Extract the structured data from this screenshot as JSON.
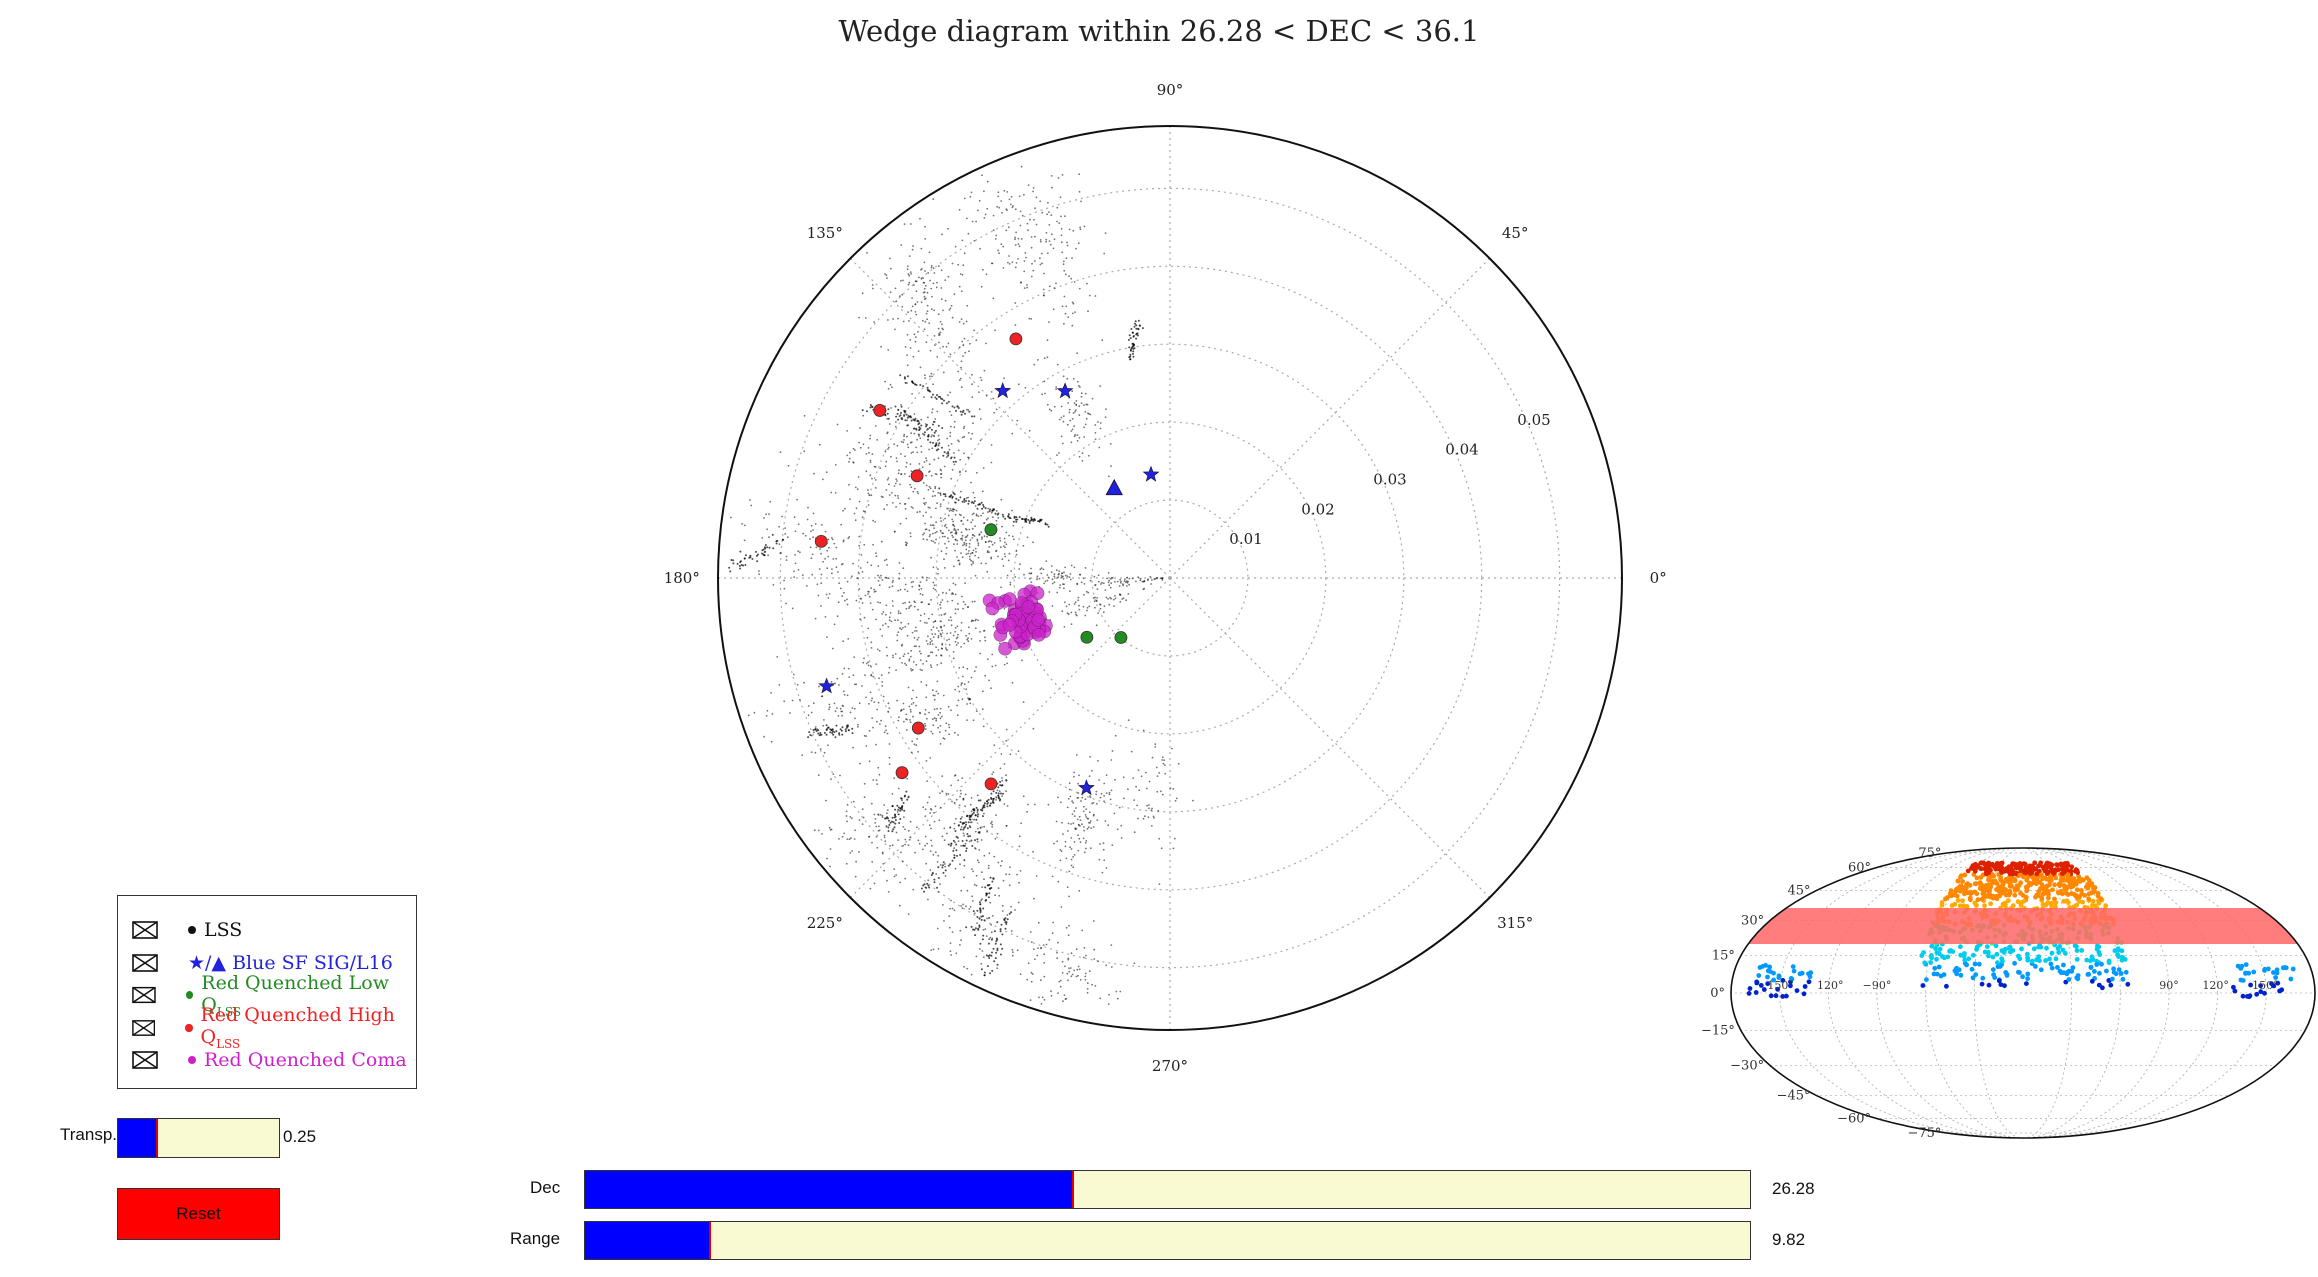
{
  "title": "Wedge diagram within 26.28  <  DEC  <  36.1",
  "chart_data": {
    "type": "scatter",
    "projection": "polar",
    "angle_ticks": [
      "0°",
      "45°",
      "90°",
      "135°",
      "180°",
      "225°",
      "270°",
      "315°"
    ],
    "radial_ticks": [
      "0.01",
      "0.02",
      "0.03",
      "0.04",
      "0.05"
    ],
    "rmax": 0.058,
    "series": [
      {
        "name": "LSS",
        "color": "#000000",
        "marker": "dot",
        "clusters": [
          [
            130,
            0.05,
            0.004,
            120
          ],
          [
            135,
            0.04,
            0.006,
            100
          ],
          [
            150,
            0.035,
            0.004,
            140
          ],
          [
            160,
            0.04,
            0.005,
            110
          ],
          [
            165,
            0.03,
            0.004,
            150
          ],
          [
            170,
            0.025,
            0.003,
            120
          ],
          [
            175,
            0.045,
            0.006,
            130
          ],
          [
            185,
            0.035,
            0.005,
            150
          ],
          [
            195,
            0.03,
            0.004,
            160
          ],
          [
            200,
            0.045,
            0.005,
            130
          ],
          [
            210,
            0.035,
            0.005,
            140
          ],
          [
            220,
            0.05,
            0.004,
            120
          ],
          [
            230,
            0.04,
            0.005,
            150
          ],
          [
            240,
            0.05,
            0.004,
            120
          ],
          [
            250,
            0.033,
            0.004,
            140
          ],
          [
            255,
            0.052,
            0.003,
            100
          ],
          [
            110,
            0.045,
            0.005,
            100
          ],
          [
            115,
            0.05,
            0.005,
            90
          ],
          [
            120,
            0.025,
            0.004,
            90
          ],
          [
            180,
            0.015,
            0.003,
            80
          ],
          [
            185,
            0.006,
            0.003,
            60
          ],
          [
            200,
            0.01,
            0.003,
            60
          ],
          [
            265,
            0.028,
            0.004,
            60
          ]
        ]
      },
      {
        "name": "★/▲ Blue SF SIG/L16",
        "color": "#2222dd",
        "points": [
          [
            131.8,
            0.0322,
            "star"
          ],
          [
            119.3,
            0.0275,
            "star"
          ],
          [
            197.5,
            0.0462,
            "star"
          ],
          [
            248.3,
            0.029,
            "star"
          ],
          [
            100.4,
            0.0135,
            "star"
          ],
          [
            122.0,
            0.0135,
            "triangle"
          ]
        ]
      },
      {
        "name": "Red Quenched Low QLSS",
        "color": "#228b22",
        "points": [
          [
            164.9,
            0.0238,
            0
          ],
          [
            215.5,
            0.0131,
            0
          ],
          [
            230.5,
            0.0099,
            0
          ]
        ]
      },
      {
        "name": "Red Quenched High QLSS",
        "color": "#ee2222",
        "points": [
          [
            122.8,
            0.0365,
            0
          ],
          [
            150.0,
            0.043,
            0
          ],
          [
            158.0,
            0.035,
            0
          ],
          [
            174.0,
            0.045,
            0
          ],
          [
            210.8,
            0.0376,
            0
          ],
          [
            216.0,
            0.0425,
            0
          ],
          [
            229.0,
            0.035,
            0
          ]
        ]
      },
      {
        "name": "Red Quenched Coma",
        "color": "#cc22cc",
        "points": [
          [
            195.0,
            0.0195,
            0
          ]
        ]
      }
    ]
  },
  "legend": {
    "items": [
      {
        "label": "LSS",
        "color": "#111111"
      },
      {
        "label": "★/▲ Blue SF SIG/L16",
        "color": "#2222dd"
      },
      {
        "label": "Red Quenched Low Q",
        "sub": "LSS",
        "color": "#228b22"
      },
      {
        "label": "Red Quenched High Q",
        "sub": "LSS",
        "color": "#ee2222"
      },
      {
        "label": "Red Quenched Coma",
        "color": "#cc22cc"
      }
    ]
  },
  "controls": {
    "transp": {
      "label": "Transp.",
      "value": "0.25",
      "fraction": 0.25
    },
    "dec": {
      "label": "Dec",
      "value": "26.28",
      "fraction": 0.42
    },
    "range": {
      "label": "Range",
      "value": "9.82",
      "fraction": 0.108
    },
    "reset_label": "Reset"
  },
  "skymap": {
    "dec_ticks": [
      "75°",
      "60°",
      "45°",
      "30°",
      "15°",
      "0°",
      "−15°",
      "−30°",
      "−45°",
      "−60°",
      "−75°"
    ],
    "ra_ticks": [
      "150°",
      "120°",
      "−90°",
      "90°",
      "120°",
      "150°"
    ],
    "band_color": "#ff6666"
  }
}
